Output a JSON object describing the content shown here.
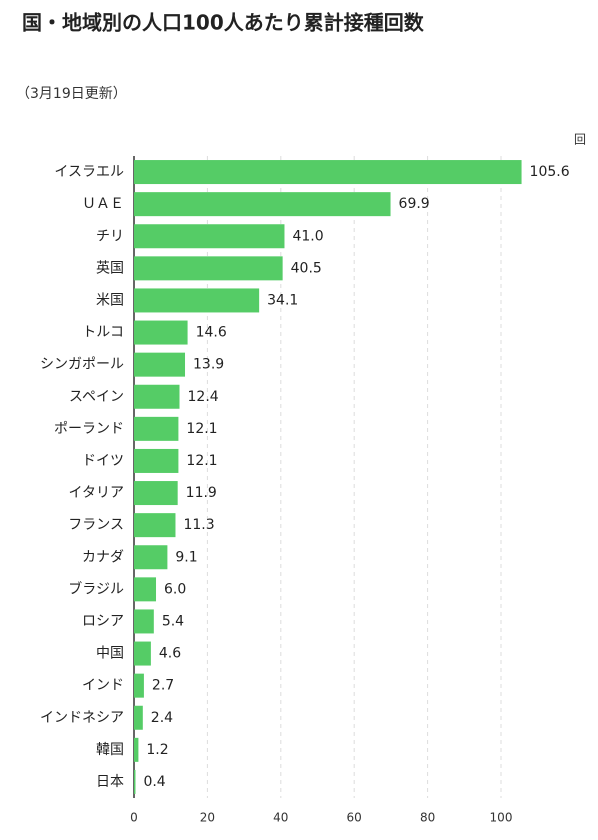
{
  "chart_data": {
    "type": "bar",
    "orientation": "horizontal",
    "title": "国・地域別の人口100人あたり累計接種回数",
    "subtitle": "（3月19日更新）",
    "x_label": "回",
    "categories": [
      "イスラエル",
      "ＵＡＥ",
      "チリ",
      "英国",
      "米国",
      "トルコ",
      "シンガポール",
      "スペイン",
      "ポーランド",
      "ドイツ",
      "イタリア",
      "フランス",
      "カナダ",
      "ブラジル",
      "ロシア",
      "中国",
      "インド",
      "インドネシア",
      "韓国",
      "日本"
    ],
    "values": [
      105.6,
      69.9,
      41.0,
      40.5,
      34.1,
      14.6,
      13.9,
      12.4,
      12.1,
      12.1,
      11.9,
      11.3,
      9.1,
      6.0,
      5.4,
      4.6,
      2.7,
      2.4,
      1.2,
      0.4
    ],
    "value_labels": [
      "105.6",
      "69.9",
      "41.0",
      "40.5",
      "34.1",
      "14.6",
      "13.9",
      "12.4",
      "12.1",
      "12.1",
      "11.9",
      "11.3",
      "9.1",
      "6.0",
      "5.4",
      "4.6",
      "2.7",
      "2.4",
      "1.2",
      "0.4"
    ],
    "color": "#55cc66",
    "xlim": [
      0,
      110
    ],
    "xticks": [
      0,
      20,
      40,
      60,
      80,
      100
    ],
    "grid": true
  }
}
